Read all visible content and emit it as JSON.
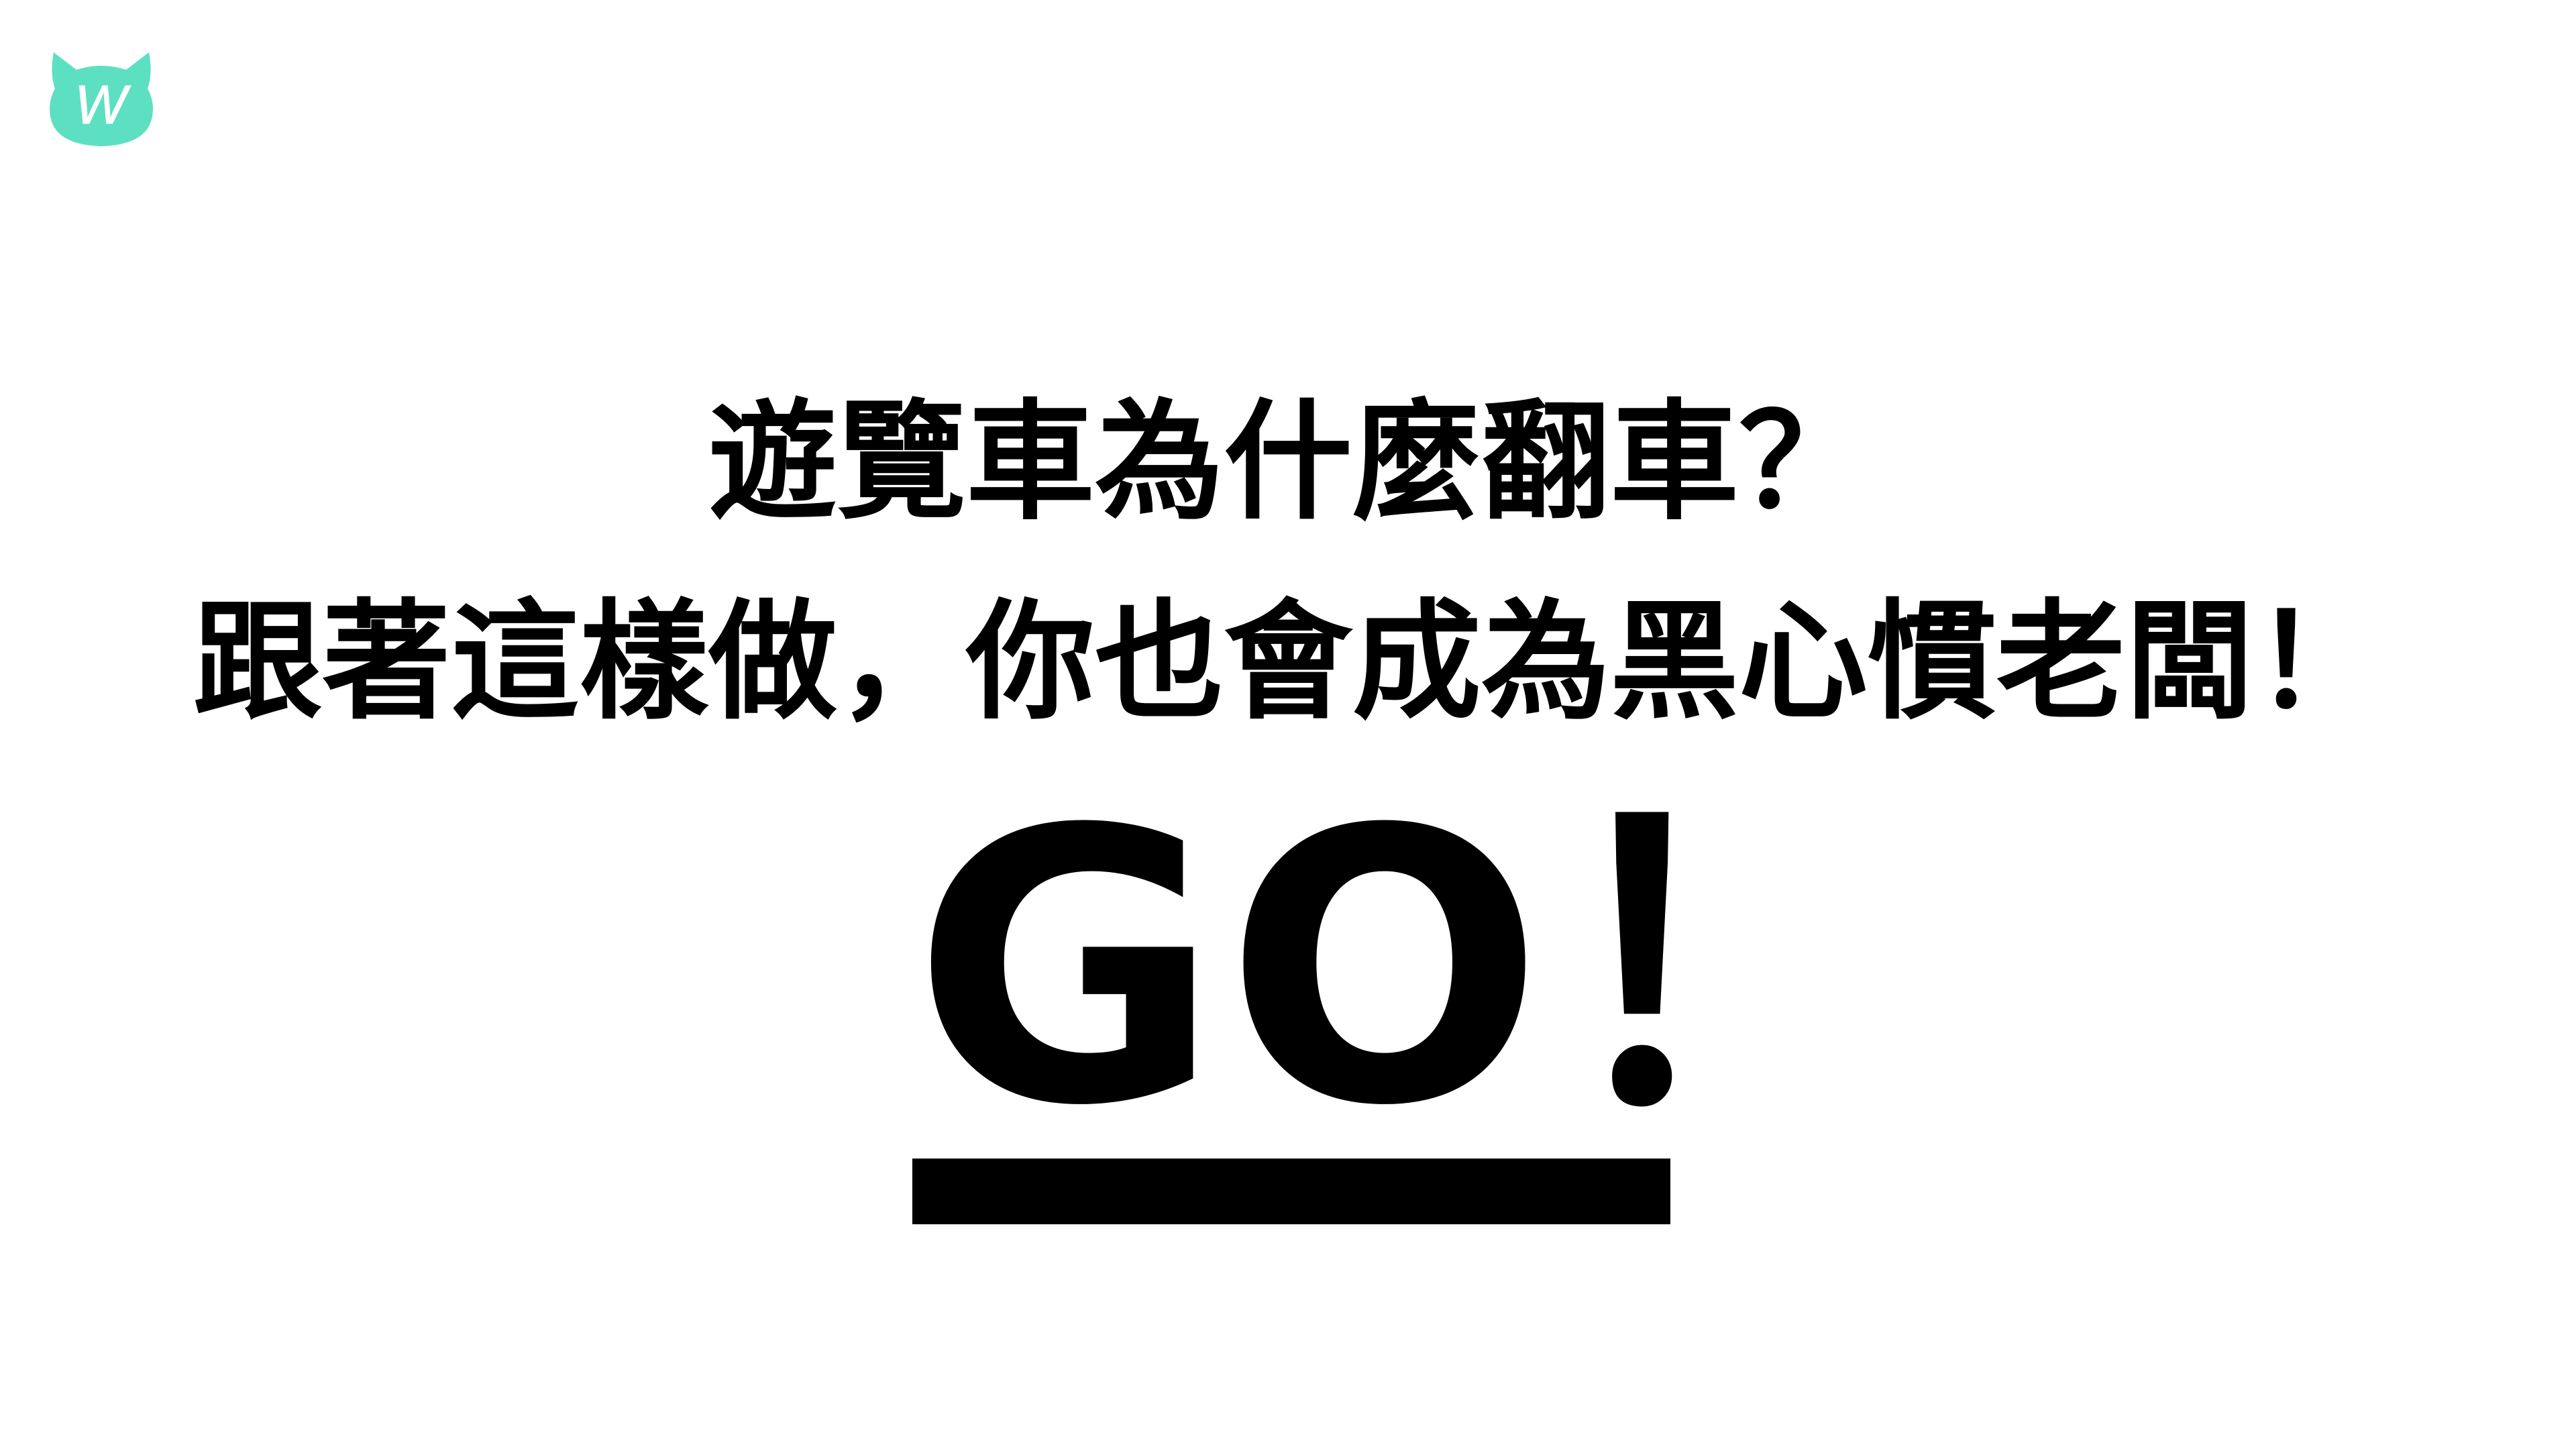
{
  "slide": {
    "headline_line_1": "遊覽車為什麼翻車？",
    "headline_line_2": "跟著這樣做，你也會成為黑心慣老闆！",
    "cta_text": "GO！"
  },
  "logo": {
    "letter": "W",
    "icon": "cat-head-logo-icon",
    "color": "#5de0c1"
  },
  "colors": {
    "background": "#ffffff",
    "text": "#000000",
    "accent": "#5de0c1"
  }
}
